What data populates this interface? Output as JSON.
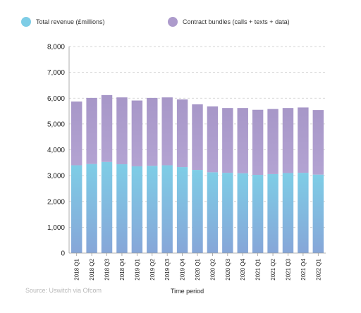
{
  "legend": {
    "items": [
      {
        "label": "Total revenue (£millions)",
        "color": "#7ecde6"
      },
      {
        "label": "Contract bundles (calls + texts + data)",
        "color": "#ad9bcc"
      }
    ]
  },
  "footer": {
    "source": "Source: Uswitch via Ofcom"
  },
  "chart_data": {
    "type": "bar",
    "stacked": true,
    "xlabel": "Time period",
    "ylabel": "",
    "ylim": [
      0,
      8000
    ],
    "yticks": [
      0,
      1000,
      2000,
      3000,
      4000,
      5000,
      6000,
      7000,
      8000
    ],
    "ytick_labels": [
      "0",
      "1,000",
      "2,000",
      "3,000",
      "4,000",
      "5,000",
      "6,000",
      "7,000",
      "8,000"
    ],
    "grid": true,
    "legend_position": "top",
    "categories": [
      "2018 Q1",
      "2018 Q2",
      "2018 Q3",
      "2018 Q4",
      "2019 Q1",
      "2019 Q2",
      "2019 Q3",
      "2019 Q4",
      "2020 Q1",
      "2020 Q2",
      "2020 Q3",
      "2020 Q4",
      "2021 Q1",
      "2021 Q2",
      "2021 Q3",
      "2021 Q4",
      "2022 Q1"
    ],
    "series": [
      {
        "name": "Total revenue (£millions)",
        "color_top": "#7ecde6",
        "color_bottom": "#86a6d8",
        "values": [
          3400,
          3450,
          3530,
          3440,
          3360,
          3380,
          3400,
          3330,
          3220,
          3130,
          3110,
          3090,
          3030,
          3060,
          3100,
          3110,
          3040
        ]
      },
      {
        "name": "Contract bundles (calls + texts + data)",
        "color_top": "#a797c8",
        "color_bottom": "#b3a3d2",
        "values": [
          2470,
          2560,
          2590,
          2590,
          2550,
          2630,
          2630,
          2620,
          2540,
          2550,
          2510,
          2530,
          2520,
          2520,
          2520,
          2530,
          2500
        ]
      }
    ]
  }
}
